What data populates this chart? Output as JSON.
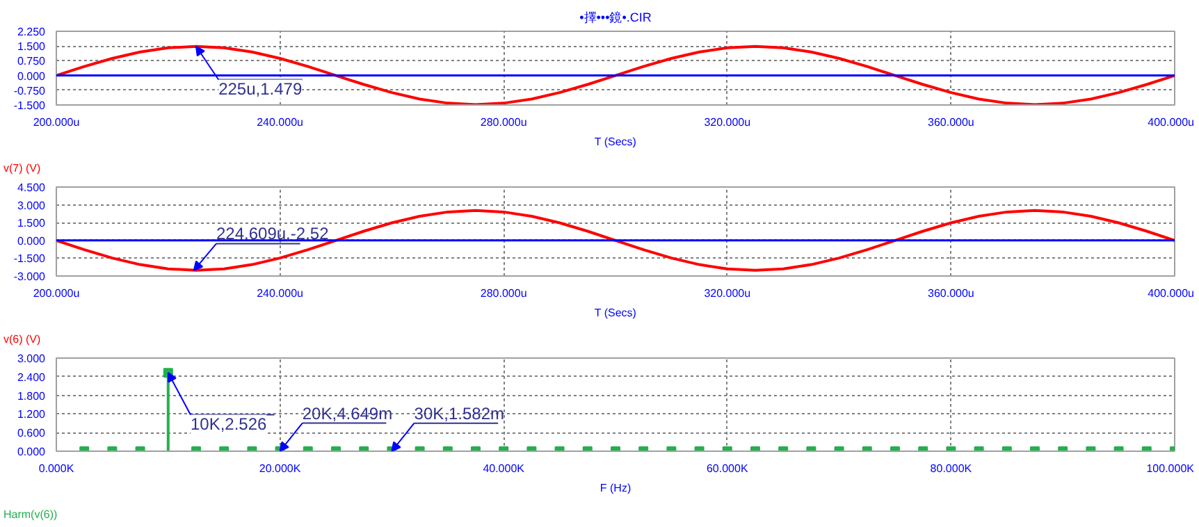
{
  "chart_data": [
    {
      "type": "line",
      "title": "•擇•••鏡•.CIR",
      "xlabel": "T (Secs)",
      "x": [
        200,
        205,
        210,
        215,
        220,
        225,
        230,
        235,
        240,
        245,
        250,
        255,
        260,
        265,
        270,
        275,
        280,
        285,
        290,
        295,
        300,
        305,
        310,
        315,
        320,
        325,
        330,
        335,
        340,
        345,
        350,
        355,
        360,
        365,
        370,
        375,
        380,
        385,
        390,
        395,
        400
      ],
      "series": [
        {
          "name": "v(7) (V)",
          "color": "#ff0000",
          "values": [
            0,
            0.457,
            0.869,
            1.197,
            1.407,
            1.479,
            1.407,
            1.197,
            0.869,
            0.457,
            0,
            -0.457,
            -0.869,
            -1.197,
            -1.407,
            -1.479,
            -1.407,
            -1.197,
            -0.869,
            -0.457,
            0,
            0.457,
            0.869,
            1.197,
            1.407,
            1.479,
            1.407,
            1.197,
            0.869,
            0.457,
            0,
            -0.457,
            -0.869,
            -1.197,
            -1.407,
            -1.479,
            -1.407,
            -1.197,
            -0.869,
            -0.457,
            0
          ]
        }
      ],
      "xlim": [
        200,
        400
      ],
      "xticks": [
        {
          "value": 200,
          "label": "200.000u"
        },
        {
          "value": 240,
          "label": "240.000u"
        },
        {
          "value": 280,
          "label": "280.000u"
        },
        {
          "value": 320,
          "label": "320.000u"
        },
        {
          "value": 360,
          "label": "360.000u"
        },
        {
          "value": 400,
          "label": "400.000u"
        }
      ],
      "ylim": [
        -1.5,
        2.25
      ],
      "yticks": [
        {
          "value": -1.5,
          "label": "-1.500"
        },
        {
          "value": -0.75,
          "label": "-0.750"
        },
        {
          "value": 0,
          "label": "0.000"
        },
        {
          "value": 0.75,
          "label": "0.750"
        },
        {
          "value": 1.5,
          "label": "1.500"
        },
        {
          "value": 2.25,
          "label": "2.250"
        }
      ],
      "ref_lines": [
        {
          "axis": "y",
          "value": 0,
          "color": "#0000ff"
        }
      ],
      "annotations": [
        {
          "text": "225u,1.479",
          "x": 225,
          "y": 1.479
        }
      ],
      "grid": true,
      "legend": "bottom left",
      "line_style": "solid"
    },
    {
      "type": "line",
      "xlabel": "T (Secs)",
      "x": [
        200,
        205,
        210,
        215,
        220,
        225,
        230,
        235,
        240,
        245,
        250,
        255,
        260,
        265,
        270,
        275,
        280,
        285,
        290,
        295,
        300,
        305,
        310,
        315,
        320,
        325,
        330,
        335,
        340,
        345,
        350,
        355,
        360,
        365,
        370,
        375,
        380,
        385,
        390,
        395,
        400
      ],
      "series": [
        {
          "name": "v(6) (V)",
          "color": "#ff0000",
          "values": [
            0,
            -0.779,
            -1.482,
            -2.039,
            -2.397,
            -2.52,
            -2.397,
            -2.039,
            -1.482,
            -0.779,
            0,
            0.779,
            1.482,
            2.039,
            2.397,
            2.52,
            2.397,
            2.039,
            1.482,
            0.779,
            0,
            -0.779,
            -1.482,
            -2.039,
            -2.397,
            -2.52,
            -2.397,
            -2.039,
            -1.482,
            -0.779,
            0,
            0.779,
            1.482,
            2.039,
            2.397,
            2.52,
            2.397,
            2.039,
            1.482,
            0.779,
            0
          ]
        }
      ],
      "xlim": [
        200,
        400
      ],
      "xticks": [
        {
          "value": 200,
          "label": "200.000u"
        },
        {
          "value": 240,
          "label": "240.000u"
        },
        {
          "value": 280,
          "label": "280.000u"
        },
        {
          "value": 320,
          "label": "320.000u"
        },
        {
          "value": 360,
          "label": "360.000u"
        },
        {
          "value": 400,
          "label": "400.000u"
        }
      ],
      "ylim": [
        -3,
        4.5
      ],
      "yticks": [
        {
          "value": -3,
          "label": "-3.000"
        },
        {
          "value": -1.5,
          "label": "-1.500"
        },
        {
          "value": 0,
          "label": "0.000"
        },
        {
          "value": 1.5,
          "label": "1.500"
        },
        {
          "value": 3,
          "label": "3.000"
        },
        {
          "value": 4.5,
          "label": "4.500"
        }
      ],
      "ref_lines": [
        {
          "axis": "y",
          "value": 0,
          "color": "#0000ff"
        }
      ],
      "annotations": [
        {
          "text": "224.609u,-2.52",
          "x": 224.609,
          "y": -2.52
        }
      ],
      "grid": true,
      "legend": "bottom left",
      "line_style": "solid"
    },
    {
      "type": "lollipop",
      "xlabel": "F (Hz)",
      "marker": "square",
      "x": [
        2500,
        5000,
        7500,
        10000,
        12500,
        15000,
        17500,
        20000,
        22500,
        25000,
        27500,
        30000,
        32500,
        35000,
        37500,
        40000,
        42500,
        45000,
        47500,
        50000,
        52500,
        55000,
        57500,
        60000,
        62500,
        65000,
        67500,
        70000,
        72500,
        75000,
        77500,
        80000,
        82500,
        85000,
        87500,
        90000,
        92500,
        95000,
        97500,
        100000
      ],
      "series": [
        {
          "name": "Harm(v(6))",
          "color": "#22b14c",
          "values": [
            0,
            0,
            0,
            2.526,
            0,
            0,
            0,
            0.004649,
            0,
            0,
            0,
            0.001582,
            0,
            0,
            0,
            0,
            0,
            0,
            0,
            0,
            0,
            0,
            0,
            0,
            0,
            0,
            0,
            0,
            0,
            0,
            0,
            0,
            0,
            0,
            0,
            0,
            0,
            0,
            0,
            0
          ]
        }
      ],
      "xlim": [
        0,
        100000
      ],
      "xticks": [
        {
          "value": 0,
          "label": "0.000K"
        },
        {
          "value": 20000,
          "label": "20.000K"
        },
        {
          "value": 40000,
          "label": "40.000K"
        },
        {
          "value": 60000,
          "label": "60.000K"
        },
        {
          "value": 80000,
          "label": "80.000K"
        },
        {
          "value": 100000,
          "label": "100.000K"
        }
      ],
      "ylim": [
        0,
        3
      ],
      "yticks": [
        {
          "value": 0,
          "label": "0.000"
        },
        {
          "value": 0.6,
          "label": "0.600"
        },
        {
          "value": 1.2,
          "label": "1.200"
        },
        {
          "value": 1.8,
          "label": "1.800"
        },
        {
          "value": 2.4,
          "label": "2.400"
        },
        {
          "value": 3,
          "label": "3.000"
        }
      ],
      "annotations": [
        {
          "text": "10K,2.526",
          "x": 10000,
          "y": 2.526
        },
        {
          "text": "20K,4.649m",
          "x": 20000,
          "y": 0.004649
        },
        {
          "text": "30K,1.582m",
          "x": 30000,
          "y": 0.001582
        }
      ],
      "grid": true,
      "legend": "bottom left"
    }
  ]
}
